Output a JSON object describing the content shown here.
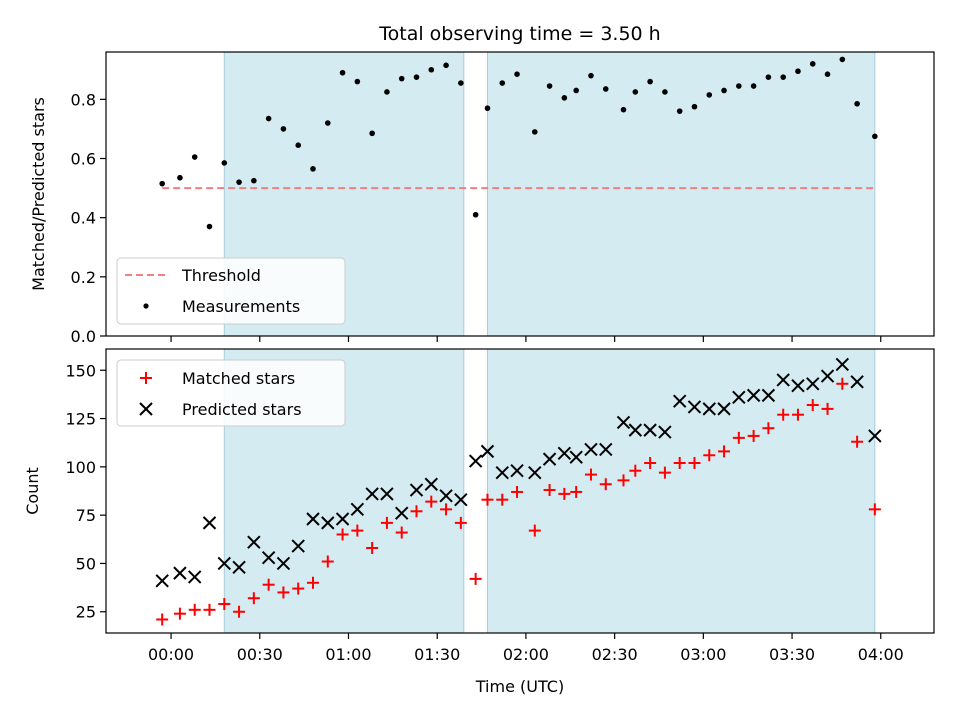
{
  "chart_data": [
    {
      "type": "scatter",
      "title": "Total observing time = 3.50 h",
      "xlabel": "",
      "ylabel": "Matched/Predicted stars",
      "xlim": [
        "23:38",
        "04:18"
      ],
      "ylim": [
        0,
        0.96
      ],
      "y_ticks": [
        0.0,
        0.2,
        0.4,
        0.6,
        0.8
      ],
      "y_tick_labels": [
        "0.0",
        "0.2",
        "0.4",
        "0.6",
        "0.8"
      ],
      "legend": "lower-left",
      "shaded_intervals": [
        [
          "00:18",
          "01:39"
        ],
        [
          "01:47",
          "03:58"
        ]
      ],
      "threshold": {
        "name": "Threshold",
        "value": 0.5,
        "from": "23:57",
        "to": "03:58",
        "color": "#f08080"
      },
      "series": [
        {
          "name": "Measurements",
          "color": "#000000",
          "marker": "dot",
          "x": [
            "23:57",
            "00:03",
            "00:08",
            "00:13",
            "00:18",
            "00:23",
            "00:28",
            "00:33",
            "00:38",
            "00:43",
            "00:48",
            "00:53",
            "00:58",
            "01:03",
            "01:08",
            "01:13",
            "01:18",
            "01:23",
            "01:28",
            "01:33",
            "01:38",
            "01:43",
            "01:47",
            "01:52",
            "01:57",
            "02:03",
            "02:08",
            "02:13",
            "02:17",
            "02:22",
            "02:27",
            "02:33",
            "02:37",
            "02:42",
            "02:47",
            "02:52",
            "02:57",
            "03:02",
            "03:07",
            "03:12",
            "03:17",
            "03:22",
            "03:27",
            "03:32",
            "03:37",
            "03:42",
            "03:47",
            "03:52",
            "03:58"
          ],
          "y": [
            0.515,
            0.535,
            0.605,
            0.37,
            0.585,
            0.52,
            0.525,
            0.735,
            0.7,
            0.645,
            0.565,
            0.72,
            0.89,
            0.86,
            0.685,
            0.825,
            0.87,
            0.875,
            0.9,
            0.915,
            0.855,
            0.41,
            0.77,
            0.855,
            0.885,
            0.69,
            0.845,
            0.805,
            0.83,
            0.88,
            0.835,
            0.765,
            0.825,
            0.86,
            0.825,
            0.76,
            0.775,
            0.815,
            0.83,
            0.845,
            0.845,
            0.875,
            0.875,
            0.895,
            0.92,
            0.885,
            0.935,
            0.785,
            0.675
          ]
        }
      ]
    },
    {
      "type": "scatter",
      "title": "",
      "xlabel": "Time (UTC)",
      "ylabel": "Count",
      "xlim": [
        "23:38",
        "04:18"
      ],
      "ylim": [
        14,
        161
      ],
      "x_ticks": [
        "00:00",
        "00:30",
        "01:00",
        "01:30",
        "02:00",
        "02:30",
        "03:00",
        "03:30",
        "04:00"
      ],
      "y_ticks": [
        25,
        50,
        75,
        100,
        125,
        150
      ],
      "legend": "upper-left",
      "shaded_intervals": [
        [
          "00:18",
          "01:39"
        ],
        [
          "01:47",
          "03:58"
        ]
      ],
      "series": [
        {
          "name": "Matched stars",
          "color": "#ff0000",
          "marker": "plus",
          "x": [
            "23:57",
            "00:03",
            "00:08",
            "00:13",
            "00:18",
            "00:23",
            "00:28",
            "00:33",
            "00:38",
            "00:43",
            "00:48",
            "00:53",
            "00:58",
            "01:03",
            "01:08",
            "01:13",
            "01:18",
            "01:23",
            "01:28",
            "01:33",
            "01:38",
            "01:43",
            "01:47",
            "01:52",
            "01:57",
            "02:03",
            "02:08",
            "02:13",
            "02:17",
            "02:22",
            "02:27",
            "02:33",
            "02:37",
            "02:42",
            "02:47",
            "02:52",
            "02:57",
            "03:02",
            "03:07",
            "03:12",
            "03:17",
            "03:22",
            "03:27",
            "03:32",
            "03:37",
            "03:42",
            "03:47",
            "03:52",
            "03:58"
          ],
          "y": [
            21,
            24,
            26,
            26,
            29,
            25,
            32,
            39,
            35,
            37,
            40,
            51,
            65,
            67,
            58,
            71,
            66,
            77,
            82,
            78,
            71,
            42,
            83,
            83,
            87,
            67,
            88,
            86,
            87,
            96,
            91,
            93,
            98,
            102,
            97,
            102,
            102,
            106,
            108,
            115,
            116,
            120,
            127,
            127,
            132,
            130,
            143,
            113,
            78
          ]
        },
        {
          "name": "Predicted stars",
          "color": "#000000",
          "marker": "x",
          "x": [
            "23:57",
            "00:03",
            "00:08",
            "00:13",
            "00:18",
            "00:23",
            "00:28",
            "00:33",
            "00:38",
            "00:43",
            "00:48",
            "00:53",
            "00:58",
            "01:03",
            "01:08",
            "01:13",
            "01:18",
            "01:23",
            "01:28",
            "01:33",
            "01:38",
            "01:43",
            "01:47",
            "01:52",
            "01:57",
            "02:03",
            "02:08",
            "02:13",
            "02:17",
            "02:22",
            "02:27",
            "02:33",
            "02:37",
            "02:42",
            "02:47",
            "02:52",
            "02:57",
            "03:02",
            "03:07",
            "03:12",
            "03:17",
            "03:22",
            "03:27",
            "03:32",
            "03:37",
            "03:42",
            "03:47",
            "03:52",
            "03:58"
          ],
          "y": [
            41,
            45,
            43,
            71,
            50,
            48,
            61,
            53,
            50,
            59,
            73,
            71,
            73,
            78,
            86,
            86,
            76,
            88,
            91,
            85,
            83,
            103,
            108,
            97,
            98,
            97,
            104,
            107,
            105,
            109,
            109,
            123,
            119,
            119,
            118,
            134,
            131,
            130,
            130,
            136,
            137,
            137,
            145,
            142,
            143,
            147,
            153,
            144,
            116
          ]
        }
      ]
    }
  ]
}
